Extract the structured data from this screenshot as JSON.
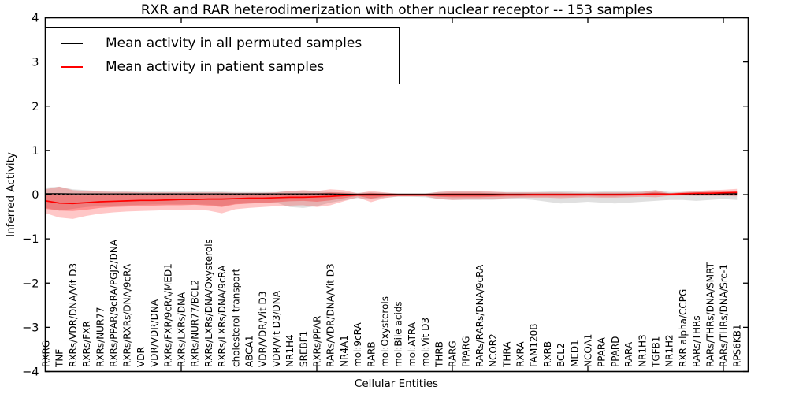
{
  "chart_data": {
    "type": "line",
    "title": "RXR and RAR heterodimerization with other nuclear receptor -- 153 samples",
    "xlabel": "Cellular Entities",
    "ylabel": "Inferred Activity",
    "ylim": [
      -4,
      4
    ],
    "yticks": [
      {
        "value": 4,
        "label": "4"
      },
      {
        "value": 3,
        "label": "3"
      },
      {
        "value": 2,
        "label": "2"
      },
      {
        "value": 1,
        "label": "1"
      },
      {
        "value": 0,
        "label": "0"
      },
      {
        "value": -1,
        "label": "−1"
      },
      {
        "value": -2,
        "label": "−2"
      },
      {
        "value": -3,
        "label": "−3"
      },
      {
        "value": -4,
        "label": "−4"
      }
    ],
    "x_major_tick_indices": [
      10,
      20,
      30,
      40,
      50
    ],
    "grid": false,
    "legend_position": "upper-left",
    "categories": [
      "RXRG",
      "TNF",
      "RXRs/VDR/DNA/Vit D3",
      "RXRs/FXR",
      "RXRs/NUR77",
      "RXRs/PPAR/9cRA/PGJ2/DNA",
      "RXRs/RXRs/DNA/9cRA",
      "VDR",
      "VDR/VDR/DNA",
      "RXRs/FXR/9cRA/MED1",
      "RXRs/LXRs/DNA",
      "RXRs/NUR77/BCL2",
      "RXRs/LXRs/DNA/Oxysterols",
      "RXRs/LXRs/DNA/9cRA",
      "cholesterol transport",
      "ABCA1",
      "VDR/VDR/Vit D3",
      "VDR/Vit D3/DNA",
      "NR1H4",
      "SREBF1",
      "RXRs/PPAR",
      "RARs/VDR/DNA/Vit D3",
      "NR4A1",
      "mol:9cRA",
      "RARB",
      "mol:Oxysterols",
      "mol:Bile acids",
      "mol:ATRA",
      "mol:Vit D3",
      "THRB",
      "RARG",
      "PPARG",
      "RARs/RARs/DNA/9cRA",
      "NCOR2",
      "THRA",
      "RXRA",
      "FAM120B",
      "RXRB",
      "BCL2",
      "MED1",
      "NCOA1",
      "PPARA",
      "PPARD",
      "RARA",
      "NR1H3",
      "TGFB1",
      "NR1H2",
      "RXR alpha/CCPG",
      "RARs/THRs",
      "RARs/THRs/DNA/SMRT",
      "RARs/THRs/DNA/Src-1",
      "RPS6KB1"
    ],
    "series": [
      {
        "name": "Mean activity in all permuted samples",
        "color": "#000000",
        "style": "solid",
        "values": [
          0.02,
          0.02,
          0.015,
          0.015,
          0.015,
          0.015,
          0.015,
          0.015,
          0.015,
          0.015,
          0.015,
          0.015,
          0.015,
          0.015,
          0.015,
          0.015,
          0.015,
          0.015,
          0.015,
          0.015,
          0.015,
          0.015,
          0.01,
          0.01,
          0.01,
          0.01,
          0.01,
          0.01,
          0.01,
          0.01,
          0.01,
          0.01,
          0.01,
          0.01,
          0.01,
          0.01,
          0.01,
          0.01,
          0.01,
          0.01,
          0.01,
          0.01,
          0.01,
          0.01,
          0.01,
          0.015,
          0.015,
          0.01,
          0.015,
          0.015,
          0.015,
          0.02
        ]
      },
      {
        "name": "Mean activity in patient samples",
        "color": "#ff0000",
        "style": "solid",
        "values": [
          -0.14,
          -0.19,
          -0.2,
          -0.18,
          -0.16,
          -0.15,
          -0.14,
          -0.13,
          -0.13,
          -0.12,
          -0.11,
          -0.11,
          -0.1,
          -0.1,
          -0.09,
          -0.08,
          -0.08,
          -0.07,
          -0.06,
          -0.06,
          -0.05,
          -0.04,
          -0.02,
          -0.01,
          -0.01,
          -0.01,
          -0.01,
          -0.01,
          -0.01,
          -0.01,
          -0.01,
          -0.01,
          -0.01,
          -0.01,
          -0.005,
          -0.005,
          0,
          0,
          0,
          0,
          0,
          0,
          0,
          0,
          0.005,
          0.01,
          0.01,
          0.02,
          0.03,
          0.03,
          0.04,
          0.05
        ]
      }
    ],
    "zero_reference_line": {
      "value": 0,
      "color": "#000000",
      "style": "dashed"
    },
    "bands": [
      {
        "name": "permuted-samples-range",
        "color": "#000000",
        "opacity": 0.12,
        "top": [
          0.16,
          0.18,
          0.12,
          0.1,
          0.08,
          0.08,
          0.08,
          0.07,
          0.07,
          0.07,
          0.07,
          0.07,
          0.07,
          0.07,
          0.06,
          0.06,
          0.06,
          0.06,
          0.09,
          0.08,
          0.07,
          0.06,
          0.05,
          0.04,
          0.05,
          0.04,
          0.03,
          0.03,
          0.03,
          0.06,
          0.07,
          0.07,
          0.07,
          0.06,
          0.06,
          0.06,
          0.06,
          0.07,
          0.08,
          0.07,
          0.06,
          0.07,
          0.08,
          0.07,
          0.08,
          0.1,
          0.06,
          0.06,
          0.07,
          0.06,
          0.05,
          0.06
        ],
        "bottom": [
          -0.3,
          -0.36,
          -0.32,
          -0.28,
          -0.26,
          -0.25,
          -0.24,
          -0.23,
          -0.22,
          -0.22,
          -0.22,
          -0.22,
          -0.23,
          -0.26,
          -0.21,
          -0.2,
          -0.19,
          -0.18,
          -0.28,
          -0.3,
          -0.26,
          -0.18,
          -0.13,
          -0.08,
          -0.1,
          -0.07,
          -0.05,
          -0.05,
          -0.06,
          -0.1,
          -0.12,
          -0.12,
          -0.12,
          -0.12,
          -0.1,
          -0.1,
          -0.12,
          -0.16,
          -0.2,
          -0.18,
          -0.16,
          -0.18,
          -0.2,
          -0.18,
          -0.16,
          -0.14,
          -0.12,
          -0.12,
          -0.14,
          -0.12,
          -0.1,
          -0.12
        ]
      },
      {
        "name": "patient-samples-range-outer",
        "color": "#ff0000",
        "opacity": 0.22,
        "top": [
          0.12,
          0.18,
          0.1,
          0.08,
          0.07,
          0.06,
          0.06,
          0.05,
          0.05,
          0.05,
          0.05,
          0.05,
          0.05,
          0.05,
          0.04,
          0.04,
          0.04,
          0.05,
          0.08,
          0.1,
          0.08,
          0.12,
          0.1,
          0.03,
          0.08,
          0.05,
          0.02,
          0.02,
          0.02,
          0.06,
          0.08,
          0.08,
          0.08,
          0.07,
          0.05,
          0.05,
          0.05,
          0.05,
          0.05,
          0.04,
          0.04,
          0.05,
          0.05,
          0.05,
          0.06,
          0.1,
          0.03,
          0.06,
          0.08,
          0.1,
          0.11,
          0.13
        ],
        "bottom": [
          -0.42,
          -0.52,
          -0.55,
          -0.48,
          -0.43,
          -0.4,
          -0.38,
          -0.37,
          -0.36,
          -0.35,
          -0.34,
          -0.34,
          -0.36,
          -0.42,
          -0.33,
          -0.3,
          -0.28,
          -0.26,
          -0.25,
          -0.24,
          -0.28,
          -0.24,
          -0.15,
          -0.06,
          -0.17,
          -0.08,
          -0.04,
          -0.04,
          -0.04,
          -0.1,
          -0.12,
          -0.11,
          -0.11,
          -0.1,
          -0.08,
          -0.07,
          -0.07,
          -0.07,
          -0.08,
          -0.07,
          -0.06,
          -0.07,
          -0.07,
          -0.06,
          -0.05,
          -0.06,
          -0.03,
          -0.02,
          -0.03,
          -0.03,
          -0.03,
          -0.04
        ]
      },
      {
        "name": "patient-samples-range-inner",
        "color": "#ff0000",
        "opacity": 0.28,
        "top": [
          0.02,
          0.0,
          -0.02,
          -0.02,
          -0.02,
          -0.01,
          -0.01,
          -0.01,
          0.0,
          0.0,
          0.0,
          0.0,
          0.0,
          0.0,
          0.0,
          0.0,
          0.0,
          0.0,
          0.02,
          0.03,
          0.03,
          0.05,
          0.04,
          0.01,
          0.04,
          0.02,
          0.01,
          0.01,
          0.01,
          0.03,
          0.04,
          0.04,
          0.04,
          0.03,
          0.02,
          0.02,
          0.02,
          0.02,
          0.02,
          0.02,
          0.02,
          0.02,
          0.02,
          0.03,
          0.03,
          0.06,
          0.02,
          0.04,
          0.05,
          0.07,
          0.08,
          0.09
        ],
        "bottom": [
          -0.32,
          -0.36,
          -0.37,
          -0.34,
          -0.3,
          -0.28,
          -0.27,
          -0.26,
          -0.25,
          -0.24,
          -0.24,
          -0.23,
          -0.25,
          -0.28,
          -0.22,
          -0.2,
          -0.19,
          -0.17,
          -0.15,
          -0.14,
          -0.16,
          -0.13,
          -0.08,
          -0.03,
          -0.09,
          -0.04,
          -0.02,
          -0.02,
          -0.02,
          -0.05,
          -0.06,
          -0.06,
          -0.06,
          -0.05,
          -0.04,
          -0.04,
          -0.04,
          -0.04,
          -0.04,
          -0.04,
          -0.03,
          -0.04,
          -0.04,
          -0.03,
          -0.02,
          -0.02,
          -0.01,
          0.0,
          0.0,
          0.0,
          0.0,
          0.0
        ]
      }
    ]
  }
}
